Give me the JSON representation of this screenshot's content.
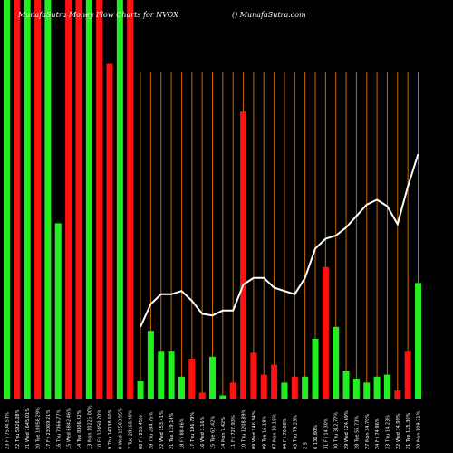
{
  "header": {
    "title": "MunafaSutra Money Flow Charts for NVOX",
    "site": "() MunafaSutra.com"
  },
  "colors": {
    "background": "#000000",
    "up": "#22ee22",
    "down": "#ff1111",
    "grid": "#cc6600",
    "line": "#ffffff"
  },
  "chart_data": {
    "type": "bar",
    "title": "MunafaSutra Money Flow Charts for NVOX",
    "bar_range": [
      0,
      100
    ],
    "line_range": [
      0,
      100
    ],
    "grid": true,
    "categories": [
      "23 Fri 7504.50%",
      "22 Thu 5926.08%",
      "21 Wed 7645.01%",
      "20 Tue 10058.29%",
      "17 Fri 23069.21%",
      "16 Thu 7066.77%",
      "15 Wed 6842.46%",
      "14 Tue 8306.32%",
      "13 Mon 10225.00%",
      "10 Fri 12450.70%",
      "9 Thu 14038.60%",
      "8 Wed 15503.95%",
      "7 Tue 28168.90%",
      "08 Fri 256.45%",
      "28 Thu 284.75%",
      "22 Wed 153.41%",
      "21 Tue 119.14%",
      "18 Fri 88.46%",
      "17 Thu 196.79%",
      "16 Wed 3.16%",
      "15 Tue 62.42%",
      "14 Mon 7.42%",
      "11 Fri 727.93%",
      "10 Thu 1208.89%",
      "09 Wed 146.94%",
      "08 Tue 16.18%",
      "07 Mon 10.19%",
      "04 Fri 70.08%",
      "03 Thu 79.23%",
      "2 5",
      "6 136.80%",
      "31 Fri 14.30%",
      "30 Thu 312.77%",
      "29 Wed 124.69%",
      "28 Tue 55.73%",
      "27 Mon 34.70%",
      "24 Fri 74.96%",
      "23 Thu 14.23%",
      "22 Wed 74.99%",
      "21 Tue 115.30%",
      "20 Mon 109.31%"
    ],
    "bars": {
      "direction": [
        "up",
        "down",
        "up",
        "down",
        "up",
        "up",
        "down",
        "down",
        "up",
        "down",
        "down",
        "up",
        "down",
        "up",
        "up",
        "up",
        "up",
        "up",
        "down",
        "down",
        "up",
        "up",
        "down",
        "down",
        "down",
        "down",
        "down",
        "up",
        "down",
        "up",
        "up",
        "down",
        "up",
        "up",
        "up",
        "up",
        "up",
        "up",
        "down",
        "down",
        "up"
      ],
      "values": [
        100,
        100,
        100,
        100,
        100,
        44,
        100,
        100,
        100,
        100,
        84,
        100,
        100,
        4.5,
        17,
        12,
        12,
        5.5,
        10,
        1.5,
        10.5,
        0.8,
        4,
        72,
        11.5,
        6,
        8.5,
        4,
        5.5,
        5.5,
        15,
        33,
        18,
        7,
        5,
        4,
        5.5,
        6,
        2,
        12,
        29
      ]
    },
    "line": [
      null,
      null,
      null,
      null,
      null,
      null,
      null,
      null,
      null,
      null,
      null,
      null,
      null,
      22,
      29,
      32,
      32,
      33,
      30,
      26,
      25.5,
      27,
      27,
      35,
      37,
      37,
      34,
      33,
      32,
      37,
      46,
      49,
      50,
      52.5,
      56,
      59.5,
      61,
      59,
      53.5,
      65,
      75
    ]
  }
}
